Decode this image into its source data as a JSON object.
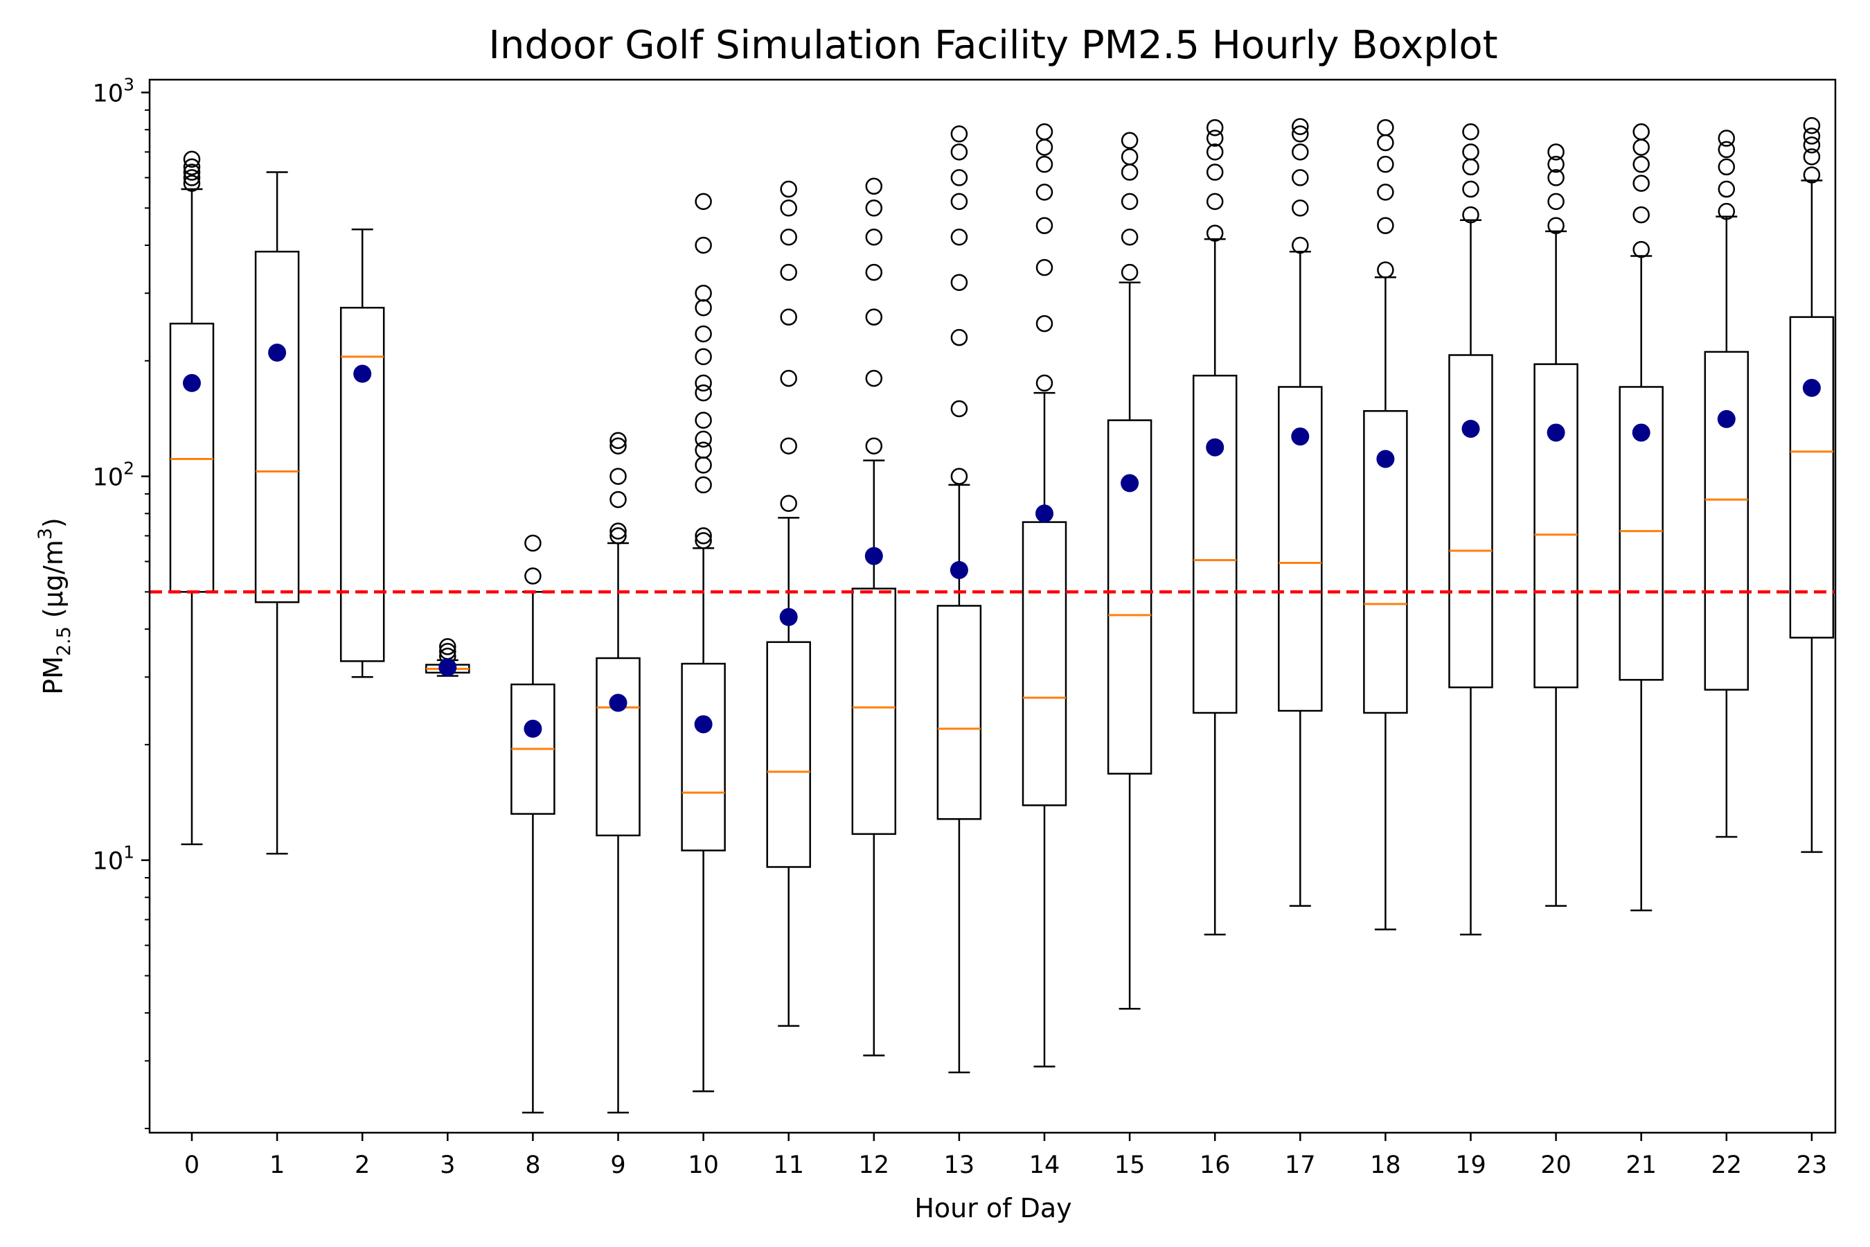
{
  "chart_data": {
    "type": "boxplot",
    "title": "Indoor Golf Simulation Facility PM2.5 Hourly Boxplot",
    "xlabel": "Hour of Day",
    "ylabel": {
      "main": "PM",
      "sub": "2.5",
      "unit_open": " (µg/m",
      "sup": "3",
      "unit_close": ")"
    },
    "y_scale": "log",
    "ylim": [
      1.95,
      1080
    ],
    "y_ticks": [
      {
        "value": 10,
        "base": "10",
        "exp": "1"
      },
      {
        "value": 100,
        "base": "10",
        "exp": "2"
      },
      {
        "value": 1000,
        "base": "10",
        "exp": "3"
      }
    ],
    "grid": false,
    "categories": [
      "0",
      "1",
      "2",
      "3",
      "8",
      "9",
      "10",
      "11",
      "12",
      "13",
      "14",
      "15",
      "16",
      "17",
      "18",
      "19",
      "20",
      "21",
      "22",
      "23"
    ],
    "reference_line": {
      "value": 50,
      "color": "#ff0000",
      "style": "dashed"
    },
    "colors": {
      "box": "#000000",
      "median": "#ff7f0e",
      "mean": "#00008b",
      "flier": "#000000"
    },
    "boxes": [
      {
        "hour": "0",
        "whislo": 11,
        "q1": 50,
        "med": 111,
        "q3": 250,
        "whishi": 560,
        "mean": 175,
        "fliers": [
          580,
          600,
          620,
          640,
          670
        ]
      },
      {
        "hour": "1",
        "whislo": 10.4,
        "q1": 47,
        "med": 103,
        "q3": 385,
        "whishi": 620,
        "mean": 210,
        "fliers": []
      },
      {
        "hour": "2",
        "whislo": 30,
        "q1": 33,
        "med": 205,
        "q3": 275,
        "whishi": 440,
        "mean": 185,
        "fliers": []
      },
      {
        "hour": "3",
        "whislo": 30.2,
        "q1": 30.8,
        "med": 31.5,
        "q3": 32.3,
        "whishi": 33.2,
        "mean": 31.8,
        "fliers": [
          34,
          35,
          36
        ]
      },
      {
        "hour": "8",
        "whislo": 2.2,
        "q1": 13.2,
        "med": 19.5,
        "q3": 28.7,
        "whishi": 50,
        "mean": 22,
        "fliers": [
          55,
          67
        ]
      },
      {
        "hour": "9",
        "whislo": 2.2,
        "q1": 11.6,
        "med": 25,
        "q3": 33.6,
        "whishi": 67,
        "mean": 25.7,
        "fliers": [
          70,
          72,
          87,
          100,
          120,
          124
        ]
      },
      {
        "hour": "10",
        "whislo": 2.5,
        "q1": 10.6,
        "med": 15,
        "q3": 32.5,
        "whishi": 65,
        "mean": 22.6,
        "fliers": [
          68,
          70,
          95,
          107,
          117,
          125,
          140,
          165,
          175,
          205,
          235,
          275,
          300,
          400,
          520
        ]
      },
      {
        "hour": "11",
        "whislo": 3.7,
        "q1": 9.6,
        "med": 17,
        "q3": 37,
        "whishi": 78,
        "mean": 43,
        "fliers": [
          85,
          120,
          180,
          260,
          340,
          420,
          500,
          560
        ]
      },
      {
        "hour": "12",
        "whislo": 3.1,
        "q1": 11.7,
        "med": 25,
        "q3": 51,
        "whishi": 110,
        "mean": 62,
        "fliers": [
          120,
          180,
          260,
          340,
          420,
          500,
          570
        ]
      },
      {
        "hour": "13",
        "whislo": 2.8,
        "q1": 12.8,
        "med": 22,
        "q3": 46,
        "whishi": 95,
        "mean": 57,
        "fliers": [
          100,
          150,
          230,
          320,
          420,
          520,
          600,
          700,
          780
        ]
      },
      {
        "hour": "14",
        "whislo": 2.9,
        "q1": 13.9,
        "med": 26.5,
        "q3": 76,
        "whishi": 165,
        "mean": 80,
        "fliers": [
          175,
          250,
          350,
          450,
          550,
          650,
          720,
          790
        ]
      },
      {
        "hour": "15",
        "whislo": 4.1,
        "q1": 16.8,
        "med": 43.5,
        "q3": 140,
        "whishi": 320,
        "mean": 96,
        "fliers": [
          340,
          420,
          520,
          620,
          680,
          750
        ]
      },
      {
        "hour": "16",
        "whislo": 6.4,
        "q1": 24.2,
        "med": 60.5,
        "q3": 183,
        "whishi": 415,
        "mean": 119,
        "fliers": [
          430,
          520,
          620,
          700,
          760,
          810
        ]
      },
      {
        "hour": "17",
        "whislo": 7.6,
        "q1": 24.5,
        "med": 59.5,
        "q3": 171,
        "whishi": 385,
        "mean": 127,
        "fliers": [
          400,
          500,
          600,
          700,
          780,
          815
        ]
      },
      {
        "hour": "18",
        "whislo": 6.6,
        "q1": 24.2,
        "med": 46.5,
        "q3": 148,
        "whishi": 330,
        "mean": 111,
        "fliers": [
          345,
          450,
          550,
          650,
          740,
          810
        ]
      },
      {
        "hour": "19",
        "whislo": 6.4,
        "q1": 28.2,
        "med": 64,
        "q3": 207,
        "whishi": 465,
        "mean": 133,
        "fliers": [
          480,
          560,
          640,
          700,
          790
        ]
      },
      {
        "hour": "20",
        "whislo": 7.6,
        "q1": 28.2,
        "med": 70.5,
        "q3": 196,
        "whishi": 435,
        "mean": 130,
        "fliers": [
          450,
          520,
          600,
          650,
          700
        ]
      },
      {
        "hour": "21",
        "whislo": 7.4,
        "q1": 29.5,
        "med": 72,
        "q3": 171,
        "whishi": 375,
        "mean": 130,
        "fliers": [
          390,
          480,
          580,
          650,
          720,
          790
        ]
      },
      {
        "hour": "22",
        "whislo": 11.5,
        "q1": 27.8,
        "med": 87,
        "q3": 211,
        "whishi": 475,
        "mean": 141,
        "fliers": [
          490,
          560,
          640,
          710,
          760
        ]
      },
      {
        "hour": "23",
        "whislo": 10.5,
        "q1": 38,
        "med": 116,
        "q3": 260,
        "whishi": 590,
        "mean": 170,
        "fliers": [
          610,
          680,
          730,
          770,
          820
        ]
      }
    ]
  }
}
